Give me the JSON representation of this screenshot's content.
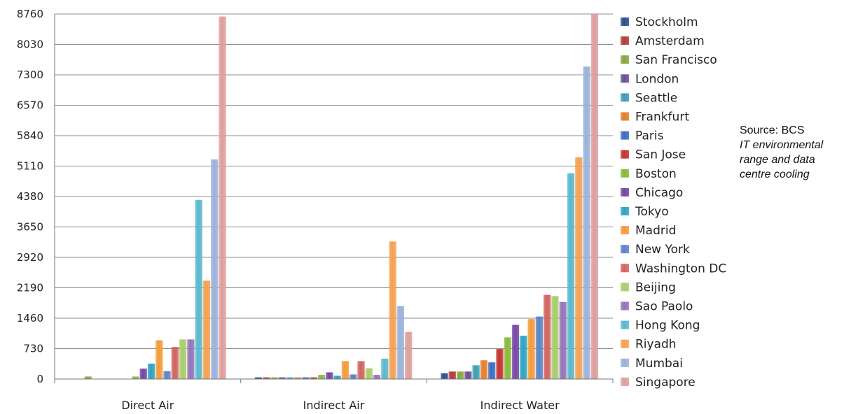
{
  "chart_data": {
    "type": "bar",
    "categories": [
      "Direct Air",
      "Indirect Air",
      "Indirect Water"
    ],
    "yticks": [
      0,
      730,
      1460,
      2190,
      2920,
      3650,
      4380,
      5110,
      5840,
      6570,
      7300,
      8030,
      8760
    ],
    "ylim": [
      0,
      8760
    ],
    "grid": true,
    "legend_position": "right",
    "series": [
      {
        "name": "Stockholm",
        "color": "#2a4f8a",
        "values": [
          0,
          40,
          140
        ]
      },
      {
        "name": "Amsterdam",
        "color": "#b23a37",
        "values": [
          0,
          40,
          180
        ]
      },
      {
        "name": "San Francisco",
        "color": "#86a63e",
        "values": [
          60,
          40,
          180
        ]
      },
      {
        "name": "London",
        "color": "#6a4f92",
        "values": [
          0,
          40,
          180
        ]
      },
      {
        "name": "Seattle",
        "color": "#3a9fb4",
        "values": [
          0,
          40,
          330
        ]
      },
      {
        "name": "Frankfurt",
        "color": "#e07f2a",
        "values": [
          0,
          40,
          450
        ]
      },
      {
        "name": "Paris",
        "color": "#3a6cc0",
        "values": [
          0,
          40,
          400
        ]
      },
      {
        "name": "San Jose",
        "color": "#c43230",
        "values": [
          0,
          40,
          720
        ]
      },
      {
        "name": "Boston",
        "color": "#8ab83c",
        "values": [
          60,
          100,
          1000
        ]
      },
      {
        "name": "Chicago",
        "color": "#7446a4",
        "values": [
          250,
          160,
          1300
        ]
      },
      {
        "name": "Tokyo",
        "color": "#2aa4c4",
        "values": [
          370,
          80,
          1040
        ]
      },
      {
        "name": "Madrid",
        "color": "#f39a3a",
        "values": [
          930,
          430,
          1440
        ]
      },
      {
        "name": "New York",
        "color": "#5a82c8",
        "values": [
          190,
          110,
          1500
        ]
      },
      {
        "name": "Washington DC",
        "color": "#d26260",
        "values": [
          770,
          430,
          2020
        ]
      },
      {
        "name": "Beijing",
        "color": "#a8cc6a",
        "values": [
          950,
          260,
          1990
        ]
      },
      {
        "name": "Sao Paolo",
        "color": "#9474b8",
        "values": [
          950,
          100,
          1850
        ]
      },
      {
        "name": "Hong Kong",
        "color": "#5ab8cc",
        "values": [
          4300,
          490,
          4940
        ]
      },
      {
        "name": "Riyadh",
        "color": "#f5a050",
        "values": [
          2360,
          3300,
          5320
        ]
      },
      {
        "name": "Mumbai",
        "color": "#9ab2da",
        "values": [
          5270,
          1750,
          7500
        ]
      },
      {
        "name": "Singapore",
        "color": "#de9e9c",
        "values": [
          8700,
          1130,
          8760
        ]
      }
    ]
  },
  "source": {
    "line1": "Source: BCS",
    "line2": "IT environmental",
    "line3": "range and data",
    "line4": "centre cooling"
  }
}
